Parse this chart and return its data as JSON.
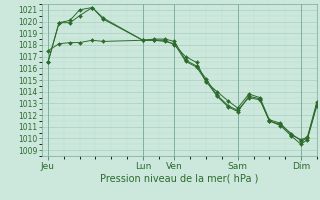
{
  "background_color": "#cce8dc",
  "grid_color_major": "#aacfbf",
  "grid_color_minor": "#bbddd0",
  "line_color": "#2d6a2d",
  "marker_color": "#2d6a2d",
  "xlabel": "Pression niveau de la mer( hPa )",
  "ylim": [
    1008.5,
    1021.5
  ],
  "yticks": [
    1009,
    1010,
    1011,
    1012,
    1013,
    1014,
    1015,
    1016,
    1017,
    1018,
    1019,
    1020,
    1021
  ],
  "xtick_labels": [
    "Jeu",
    "Lun",
    "Ven",
    "Sam",
    "Dim"
  ],
  "xtick_positions": [
    0,
    3.0,
    4.0,
    6.0,
    8.0
  ],
  "xmax": 8.5,
  "series1_x": [
    0.0,
    0.35,
    0.7,
    1.0,
    1.4,
    1.75,
    3.0,
    3.35,
    3.7,
    4.0,
    4.35,
    4.7,
    5.0,
    5.35,
    5.7,
    6.0,
    6.35,
    6.7,
    7.0,
    7.35,
    7.7,
    8.0,
    8.2,
    8.5
  ],
  "series1_y": [
    1016.5,
    1019.9,
    1019.9,
    1020.5,
    1021.2,
    1020.2,
    1018.4,
    1018.5,
    1018.5,
    1018.3,
    1016.7,
    1016.2,
    1015.1,
    1013.7,
    1012.8,
    1012.4,
    1013.5,
    1013.3,
    1011.5,
    1011.2,
    1010.4,
    1009.8,
    1010.0,
    1012.9
  ],
  "series2_x": [
    0.0,
    0.35,
    0.7,
    1.0,
    1.4,
    1.75,
    3.0,
    3.35,
    3.7,
    4.0,
    4.35,
    4.7,
    5.0,
    5.35,
    5.7,
    6.0,
    6.35,
    6.7,
    7.0,
    7.35,
    7.7,
    8.0,
    8.2,
    8.5
  ],
  "series2_y": [
    1017.5,
    1018.1,
    1018.2,
    1018.2,
    1018.4,
    1018.3,
    1018.4,
    1018.4,
    1018.4,
    1018.0,
    1017.0,
    1016.5,
    1014.8,
    1014.0,
    1013.2,
    1012.6,
    1013.8,
    1013.5,
    1011.6,
    1011.3,
    1010.3,
    1009.9,
    1010.1,
    1013.1
  ],
  "series3_x": [
    0.0,
    0.35,
    0.7,
    1.0,
    1.4,
    1.75,
    3.0,
    3.35,
    3.7,
    4.0,
    4.35,
    4.7,
    5.0,
    5.35,
    5.7,
    6.0,
    6.35,
    6.7,
    7.0,
    7.35,
    7.7,
    8.0,
    8.2,
    8.5
  ],
  "series3_y": [
    1016.5,
    1019.9,
    1020.1,
    1021.0,
    1021.2,
    1020.3,
    1018.4,
    1018.4,
    1018.3,
    1018.1,
    1016.6,
    1016.1,
    1014.9,
    1013.6,
    1012.7,
    1012.3,
    1013.6,
    1013.4,
    1011.5,
    1011.1,
    1010.2,
    1009.5,
    1009.9,
    1012.8
  ],
  "ylabel_fontsize": 5.5,
  "xlabel_fontsize": 7.0,
  "xtick_fontsize": 6.5
}
